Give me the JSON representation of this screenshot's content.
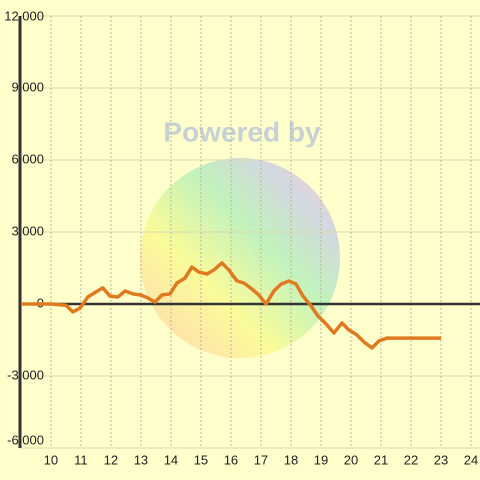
{
  "watermark": "Powered by",
  "chart_data": {
    "type": "line",
    "x": [
      9,
      10,
      10.5,
      10.73,
      10.97,
      11.23,
      11.5,
      11.73,
      11.97,
      12.23,
      12.47,
      12.73,
      13,
      13.23,
      13.47,
      13.7,
      13.97,
      14.2,
      14.47,
      14.7,
      14.93,
      15.2,
      15.43,
      15.7,
      15.93,
      16.2,
      16.43,
      16.7,
      16.93,
      17.17,
      17.43,
      17.67,
      17.93,
      18.17,
      18.4,
      18.67,
      18.9,
      19.17,
      19.43,
      19.7,
      19.93,
      20.2,
      20.43,
      20.7,
      20.93,
      21.2,
      21.47,
      22,
      22.5,
      23
    ],
    "series": [
      {
        "color": "#e07a20",
        "values": [
          0,
          0,
          -50,
          -330,
          -170,
          290,
          500,
          670,
          330,
          290,
          540,
          420,
          375,
          250,
          80,
          375,
          420,
          875,
          1080,
          1540,
          1330,
          1250,
          1420,
          1710,
          1420,
          960,
          875,
          625,
          375,
          0,
          540,
          830,
          960,
          830,
          330,
          -80,
          -500,
          -830,
          -1210,
          -790,
          -1080,
          -1290,
          -1580,
          -1830,
          -1540,
          -1420,
          -1420,
          -1420,
          -1420,
          -1420
        ]
      }
    ],
    "xlim": [
      8.97,
      24.3
    ],
    "xticks": [
      10,
      11,
      12,
      13,
      14,
      15,
      16,
      17,
      18,
      19,
      20,
      21,
      22,
      23,
      24
    ],
    "ylim": [
      -6000,
      12000
    ],
    "yticks": [
      {
        "value": -6000,
        "label": "-6,000"
      },
      {
        "value": -3000,
        "label": "-3,000"
      },
      0,
      {
        "value": 3000,
        "label": "3,000"
      },
      {
        "value": 6000,
        "label": "6,000"
      },
      {
        "value": 9000,
        "label": "9,000"
      },
      {
        "value": 12000,
        "label": "12,000"
      }
    ],
    "grid": true
  }
}
